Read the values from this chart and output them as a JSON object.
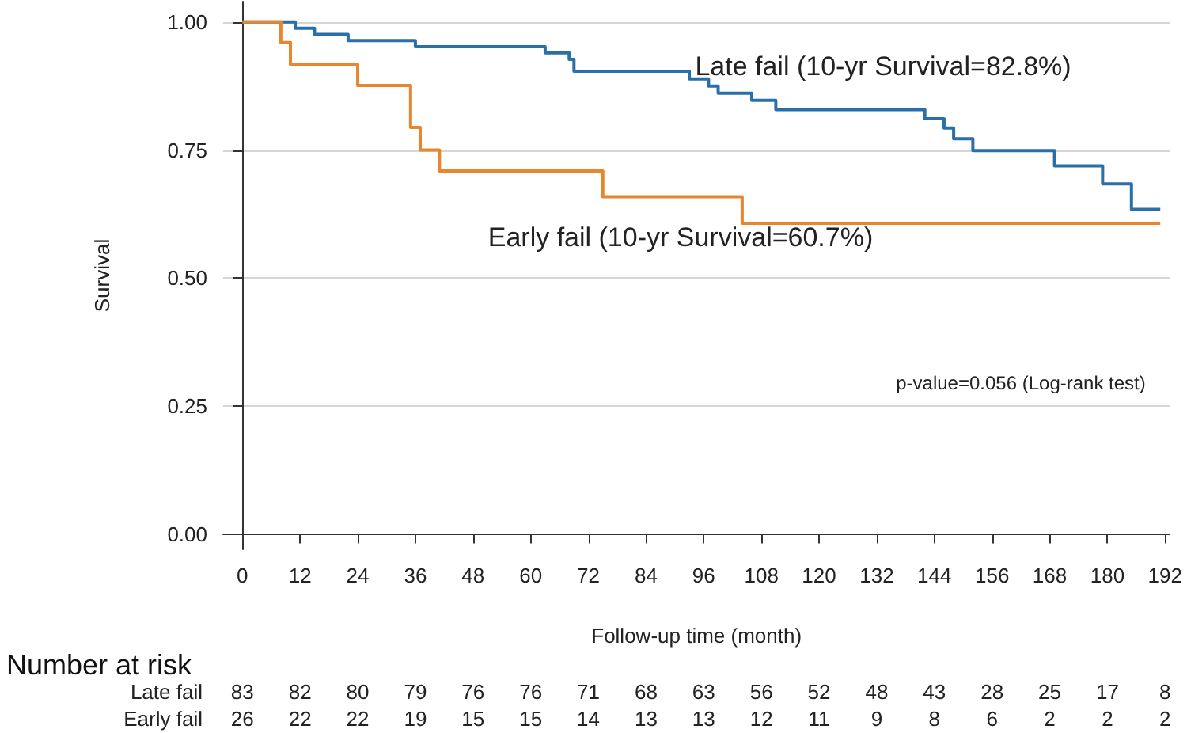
{
  "chart_data": {
    "type": "step",
    "xlabel": "Follow-up time (month)",
    "ylabel": "Survival",
    "xlim": [
      -4,
      193
    ],
    "xticks": [
      0,
      12,
      24,
      36,
      48,
      60,
      72,
      84,
      96,
      108,
      120,
      132,
      144,
      156,
      168,
      180,
      192
    ],
    "ylim": [
      -0.03,
      1.04
    ],
    "yticks": [
      {
        "value": 0,
        "label": "0.00"
      },
      {
        "value": 0.25,
        "label": "0.25"
      },
      {
        "value": 0.5,
        "label": "0.50"
      },
      {
        "value": 0.75,
        "label": "0.75"
      },
      {
        "value": 1,
        "label": "1.00"
      }
    ],
    "grid": "y",
    "marker": "none",
    "line_style": "solid",
    "series": [
      {
        "name": "Late fail (10-yr Survival=82.8%)",
        "color": "#2a6fa8",
        "x": [
          0,
          11,
          15,
          22,
          36,
          63,
          68,
          69,
          93,
          97,
          99,
          106,
          111,
          142,
          146,
          148,
          152,
          169,
          179,
          185,
          191
        ],
        "values": [
          1,
          0.988,
          0.976,
          0.964,
          0.952,
          0.94,
          0.927,
          0.904,
          0.889,
          0.875,
          0.861,
          0.847,
          0.829,
          0.811,
          0.793,
          0.772,
          0.749,
          0.719,
          0.684,
          0.634,
          0.634
        ]
      },
      {
        "name": "Early fail (10-yr Survival=60.7%)",
        "color": "#e8862e",
        "x": [
          0,
          8,
          10,
          24,
          35,
          37,
          41,
          75,
          104,
          191
        ],
        "values": [
          1,
          0.96,
          0.917,
          0.876,
          0.794,
          0.75,
          0.709,
          0.659,
          0.607,
          0.607
        ]
      }
    ],
    "annotations": [
      "p-value=0.056 (Log-rank test)",
      "Number at risk",
      "Late fail",
      "83",
      "82",
      "80",
      "79",
      "76",
      "76",
      "71",
      "68",
      "63",
      "56",
      "52",
      "48",
      "43",
      "28",
      "25",
      "17",
      "8",
      "Early fail",
      "26",
      "22",
      "22",
      "19",
      "15",
      "15",
      "14",
      "13",
      "13",
      "12",
      "11",
      "9",
      "8",
      "6",
      "2",
      "2",
      "2"
    ]
  }
}
